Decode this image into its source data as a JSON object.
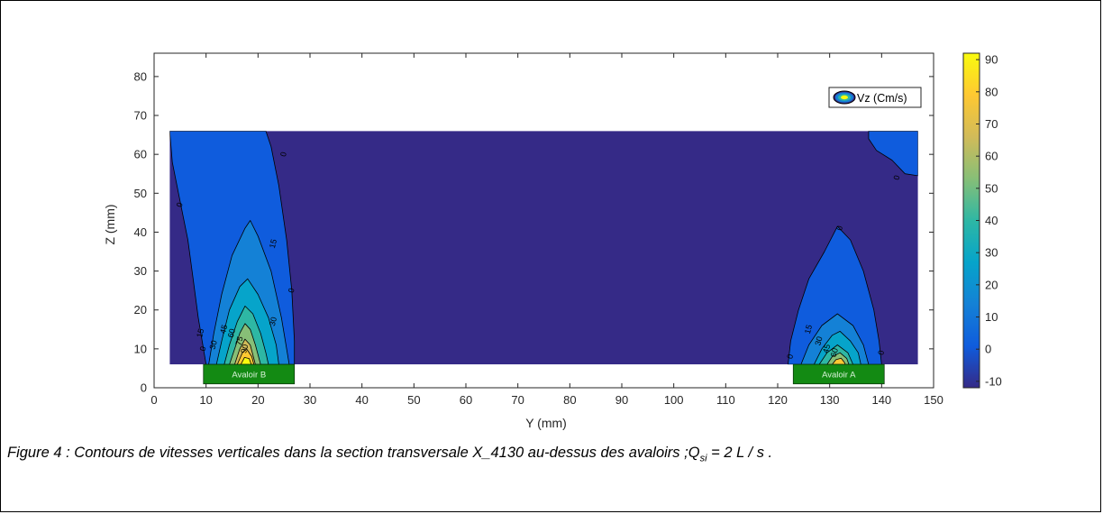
{
  "figure": {
    "caption_main": "Figure 4 : Contours de vitesses verticales dans la section transversale X_4130 au-dessus des avaloirs ;Q",
    "caption_sub": "si",
    "caption_end": " = 2 L / s ."
  },
  "chart_data": {
    "type": "heatmap",
    "subtype": "filled contour",
    "xlabel": "Y (mm)",
    "ylabel": "Z (mm)",
    "xlim": [
      0,
      150
    ],
    "ylim": [
      0,
      86
    ],
    "xticks": [
      0,
      10,
      20,
      30,
      40,
      50,
      60,
      70,
      80,
      90,
      100,
      110,
      120,
      130,
      140,
      150
    ],
    "yticks": [
      0,
      10,
      20,
      30,
      40,
      50,
      60,
      70,
      80
    ],
    "data_extent": {
      "y": [
        3,
        147
      ],
      "z": [
        6,
        66
      ]
    },
    "legend": {
      "label": "Vz (Cm/s)",
      "position": "top-right"
    },
    "colorbar": {
      "ticks": [
        90,
        80,
        70,
        60,
        50,
        40,
        30,
        20,
        10,
        0,
        -10
      ],
      "range": [
        -12,
        92
      ],
      "colormap": "parula",
      "colors": [
        "#352a87",
        "#0f5cdd",
        "#1481d6",
        "#06a4ca",
        "#2eb7a4",
        "#87bf77",
        "#d1bb59",
        "#fec832",
        "#f9fb0e"
      ]
    },
    "background_color": "#352a87",
    "contour_levels": [
      0,
      15,
      30,
      45,
      60,
      75,
      90
    ],
    "contour_labels": [
      {
        "text": "0",
        "y": 25,
        "z": 60
      },
      {
        "text": "0",
        "y": 5,
        "z": 47
      },
      {
        "text": "15",
        "y": 23,
        "z": 37
      },
      {
        "text": "0",
        "y": 26.5,
        "z": 25
      },
      {
        "text": "30",
        "y": 23,
        "z": 17
      },
      {
        "text": "15",
        "y": 9,
        "z": 14
      },
      {
        "text": "0",
        "y": 9.5,
        "z": 10
      },
      {
        "text": "30",
        "y": 11.5,
        "z": 11
      },
      {
        "text": "45",
        "y": 13.5,
        "z": 15
      },
      {
        "text": "60",
        "y": 15,
        "z": 14
      },
      {
        "text": "75",
        "y": 16.5,
        "z": 12
      },
      {
        "text": "90",
        "y": 17.5,
        "z": 10
      },
      {
        "text": "0",
        "y": 143,
        "z": 54
      },
      {
        "text": "0",
        "y": 132,
        "z": 41
      },
      {
        "text": "15",
        "y": 126,
        "z": 15
      },
      {
        "text": "30",
        "y": 128,
        "z": 12
      },
      {
        "text": "45",
        "y": 129.5,
        "z": 10
      },
      {
        "text": "60",
        "y": 131,
        "z": 9
      },
      {
        "text": "0",
        "y": 122.5,
        "z": 8
      },
      {
        "text": "0",
        "y": 140,
        "z": 9
      }
    ],
    "inlets": [
      {
        "label": "Avaloir B",
        "y": [
          9.5,
          27
        ],
        "z": [
          1,
          6
        ],
        "color": "#138a13"
      },
      {
        "label": "Avaloir A",
        "y": [
          123,
          140.5
        ],
        "z": [
          1,
          6
        ],
        "color": "#138a13"
      }
    ]
  }
}
